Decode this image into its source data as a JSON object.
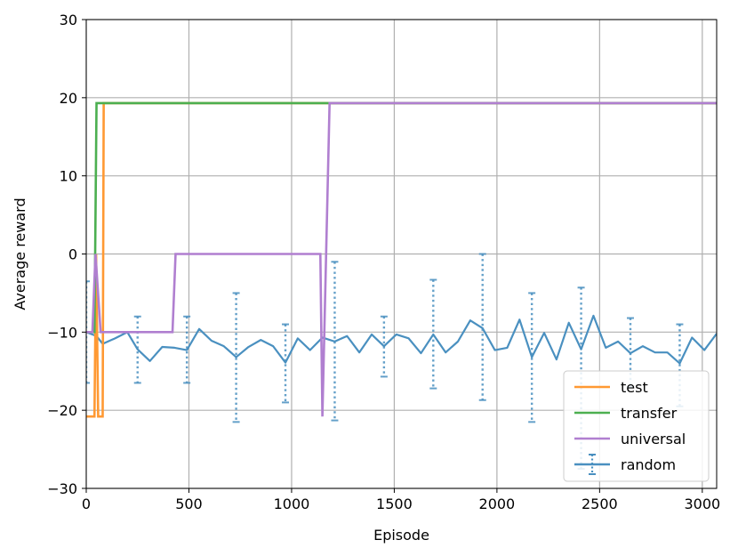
{
  "chart_data": {
    "type": "line",
    "title": "",
    "xlabel": "Episode",
    "ylabel": "Average reward",
    "xlim": [
      0,
      3070
    ],
    "ylim": [
      -30,
      30
    ],
    "x_ticks": [
      0,
      500,
      1000,
      1500,
      2000,
      2500,
      3000
    ],
    "y_ticks": [
      -30,
      -20,
      -10,
      0,
      10,
      20,
      30
    ],
    "x_tick_labels": [
      "0",
      "500",
      "1000",
      "1500",
      "2000",
      "2500",
      "3000"
    ],
    "y_tick_labels": [
      "−30",
      "−20",
      "−10",
      "0",
      "10",
      "20",
      "30"
    ],
    "grid": true,
    "legend_position": "lower-right",
    "series": [
      {
        "name": "test",
        "color": "#ff9933",
        "x": [
          0,
          40,
          48,
          58,
          80,
          85,
          3070
        ],
        "y": [
          -20.8,
          -20.8,
          0,
          -20.8,
          -20.8,
          19.3,
          19.3
        ]
      },
      {
        "name": "transfer",
        "color": "#4caf50",
        "x": [
          0,
          40,
          50,
          3070
        ],
        "y": [
          -10,
          -10,
          19.3,
          19.3
        ]
      },
      {
        "name": "universal",
        "color": "#b07fd0",
        "x": [
          0,
          30,
          45,
          70,
          420,
          435,
          1140,
          1150,
          1185,
          3070
        ],
        "y": [
          -10,
          -10,
          0,
          -10,
          -10,
          0,
          0,
          -20.8,
          19.3,
          19.3
        ]
      },
      {
        "name": "random",
        "color": "#4a90c0",
        "style": "errorbar",
        "x": [
          0,
          50,
          80,
          140,
          200,
          250,
          310,
          370,
          430,
          490,
          550,
          610,
          670,
          730,
          790,
          850,
          910,
          970,
          1030,
          1090,
          1150,
          1210,
          1270,
          1330,
          1390,
          1450,
          1510,
          1570,
          1630,
          1690,
          1750,
          1810,
          1870,
          1930,
          1990,
          2050,
          2110,
          2170,
          2230,
          2290,
          2350,
          2410,
          2470,
          2530,
          2590,
          2650,
          2710,
          2770,
          2830,
          2890,
          2950,
          3010,
          3070
        ],
        "y": [
          -10,
          -10.5,
          -11.5,
          -10.8,
          -10,
          -12.2,
          -13.7,
          -11.9,
          -12,
          -12.3,
          -9.6,
          -11.1,
          -11.8,
          -13.2,
          -11.9,
          -11,
          -11.8,
          -13.9,
          -10.8,
          -12.3,
          -10.7,
          -11.2,
          -10.5,
          -12.6,
          -10.3,
          -11.8,
          -10.3,
          -10.8,
          -12.7,
          -10.3,
          -12.6,
          -11.2,
          -8.5,
          -9.5,
          -12.3,
          -12,
          -8.4,
          -13.2,
          -10.1,
          -13.5,
          -8.8,
          -12.2,
          -7.9,
          -12,
          -11.2,
          -12.7,
          -11.8,
          -12.6,
          -12.6,
          -14,
          -10.7,
          -12.3,
          -10.2
        ],
        "err_x": [
          0,
          250,
          490,
          730,
          970,
          1210,
          1450,
          1690,
          1930,
          2170,
          2410,
          2650,
          2890
        ],
        "err_low": [
          -16.5,
          -16.5,
          -16.5,
          -21.5,
          -19,
          -21.3,
          -15.7,
          -17.2,
          -18.7,
          -21.5,
          -27.5,
          -17,
          -19.5
        ],
        "err_high": [
          -3.5,
          -8,
          -8,
          -5,
          -9,
          -1,
          -8,
          -3.3,
          0,
          -5,
          -4.3,
          -8.2,
          -9
        ]
      }
    ]
  }
}
